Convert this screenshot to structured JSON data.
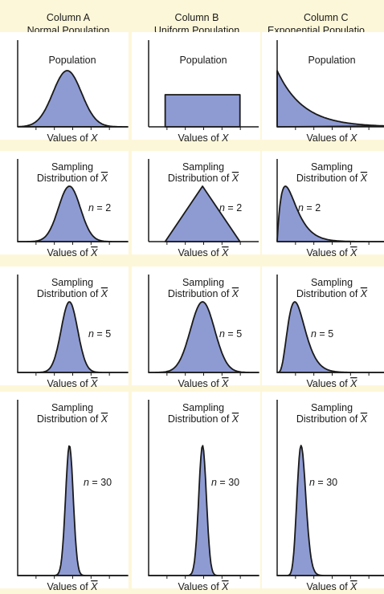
{
  "columns": [
    {
      "label": "Column A",
      "population": "Normal Population",
      "shape": "normal"
    },
    {
      "label": "Column B",
      "population": "Uniform Population",
      "shape": "uniform"
    },
    {
      "label": "Column C",
      "population": "Exponential Populatio",
      "shape": "exponential"
    }
  ],
  "population_title": "Population",
  "population_xlabel": "Values of X",
  "sampling_title_line1": "Sampling",
  "sampling_title_line2": "Distribution of X̅",
  "sampling_xlabel": "Values of X̅",
  "rows": [
    {
      "kind": "population",
      "n_label": ""
    },
    {
      "kind": "sampling",
      "n_label": "n = 2"
    },
    {
      "kind": "sampling",
      "n_label": "n = 5"
    },
    {
      "kind": "sampling",
      "n_label": "n = 30"
    }
  ],
  "colors": {
    "background": "#fdf7d9",
    "panel": "#ffffff",
    "fill": "#8e9bd3",
    "stroke": "#1a1a1a"
  }
}
